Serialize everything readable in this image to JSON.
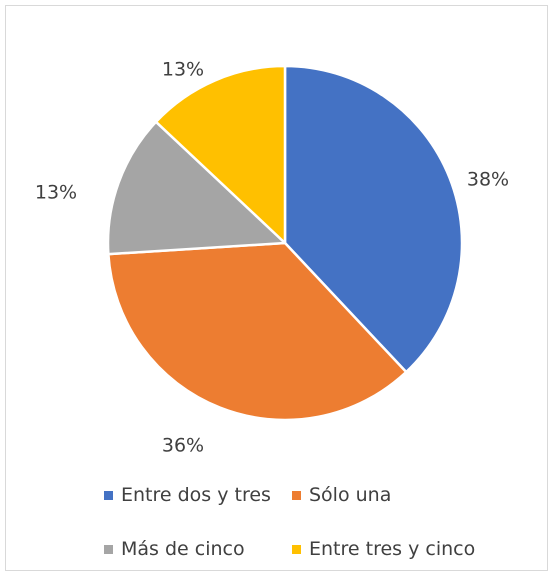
{
  "chart_data": {
    "type": "pie",
    "title": "",
    "categories": [
      "Entre dos y tres",
      "Sólo una",
      "Más de cinco",
      "Entre tres y cinco"
    ],
    "values": [
      38,
      36,
      13,
      13
    ],
    "labels": [
      "38%",
      "36%",
      "13%",
      "13%"
    ],
    "colors": [
      "#4472c4",
      "#ed7d31",
      "#a5a5a5",
      "#ffc000"
    ],
    "start_angle_deg": 0,
    "direction": "clockwise",
    "legend_position": "bottom"
  }
}
